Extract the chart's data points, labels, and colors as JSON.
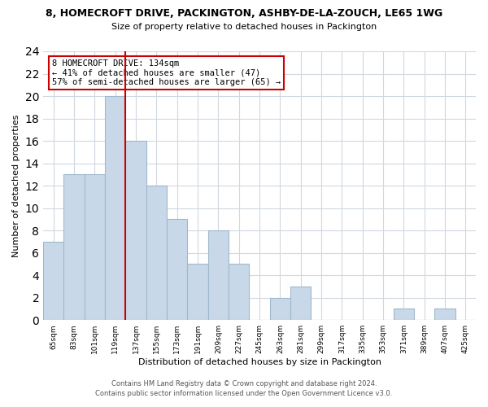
{
  "title": "8, HOMECROFT DRIVE, PACKINGTON, ASHBY-DE-LA-ZOUCH, LE65 1WG",
  "subtitle": "Size of property relative to detached houses in Packington",
  "xlabel": "Distribution of detached houses by size in Packington",
  "ylabel": "Number of detached properties",
  "bin_labels": [
    "65sqm",
    "83sqm",
    "101sqm",
    "119sqm",
    "137sqm",
    "155sqm",
    "173sqm",
    "191sqm",
    "209sqm",
    "227sqm",
    "245sqm",
    "263sqm",
    "281sqm",
    "299sqm",
    "317sqm",
    "335sqm",
    "353sqm",
    "371sqm",
    "389sqm",
    "407sqm",
    "425sqm"
  ],
  "bar_values": [
    7,
    13,
    13,
    20,
    16,
    12,
    9,
    5,
    8,
    5,
    0,
    2,
    3,
    0,
    0,
    0,
    0,
    1,
    0,
    1,
    0
  ],
  "bar_color": "#c8d8e8",
  "bar_edge_color": "#a0b8cc",
  "vline_color": "#cc0000",
  "annotation_line1": "8 HOMECROFT DRIVE: 134sqm",
  "annotation_line2": "← 41% of detached houses are smaller (47)",
  "annotation_line3": "57% of semi-detached houses are larger (65) →",
  "annotation_box_color": "white",
  "annotation_box_edge": "#cc0000",
  "ylim": [
    0,
    24
  ],
  "yticks": [
    0,
    2,
    4,
    6,
    8,
    10,
    12,
    14,
    16,
    18,
    20,
    22,
    24
  ],
  "footer1": "Contains HM Land Registry data © Crown copyright and database right 2024.",
  "footer2": "Contains public sector information licensed under the Open Government Licence v3.0.",
  "bg_color": "white",
  "grid_color": "#d0d8e0"
}
